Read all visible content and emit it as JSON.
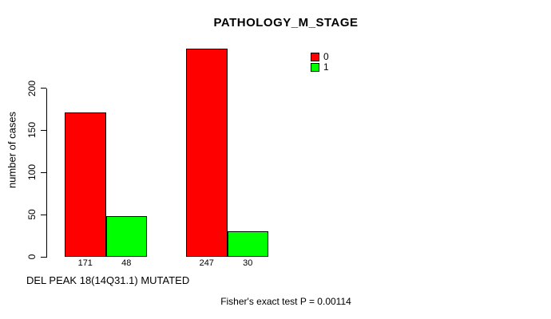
{
  "chart_data": {
    "type": "bar",
    "title": "PATHOLOGY_M_STAGE",
    "xlabel": "DEL PEAK 18(14Q31.1) MUTATED",
    "ylabel": "number of cases",
    "ylim": [
      0,
      250
    ],
    "yticks": [
      0,
      50,
      100,
      150,
      200
    ],
    "grid": false,
    "legend_position": "top-right-of-plot",
    "legend": [
      {
        "label": "0",
        "color": "#ff0000"
      },
      {
        "label": "1",
        "color": "#00ff00"
      }
    ],
    "series_names": [
      "0",
      "1"
    ],
    "groups": [
      {
        "values": [
          171,
          48
        ],
        "bar_labels": [
          "171",
          "48"
        ]
      },
      {
        "values": [
          247,
          30
        ],
        "bar_labels": [
          "247",
          "30"
        ]
      }
    ],
    "annotation": "Fisher's exact test P = 0.00114",
    "colors": {
      "bar_border": "#000000",
      "axis": "#000000",
      "background": "#ffffff"
    }
  }
}
